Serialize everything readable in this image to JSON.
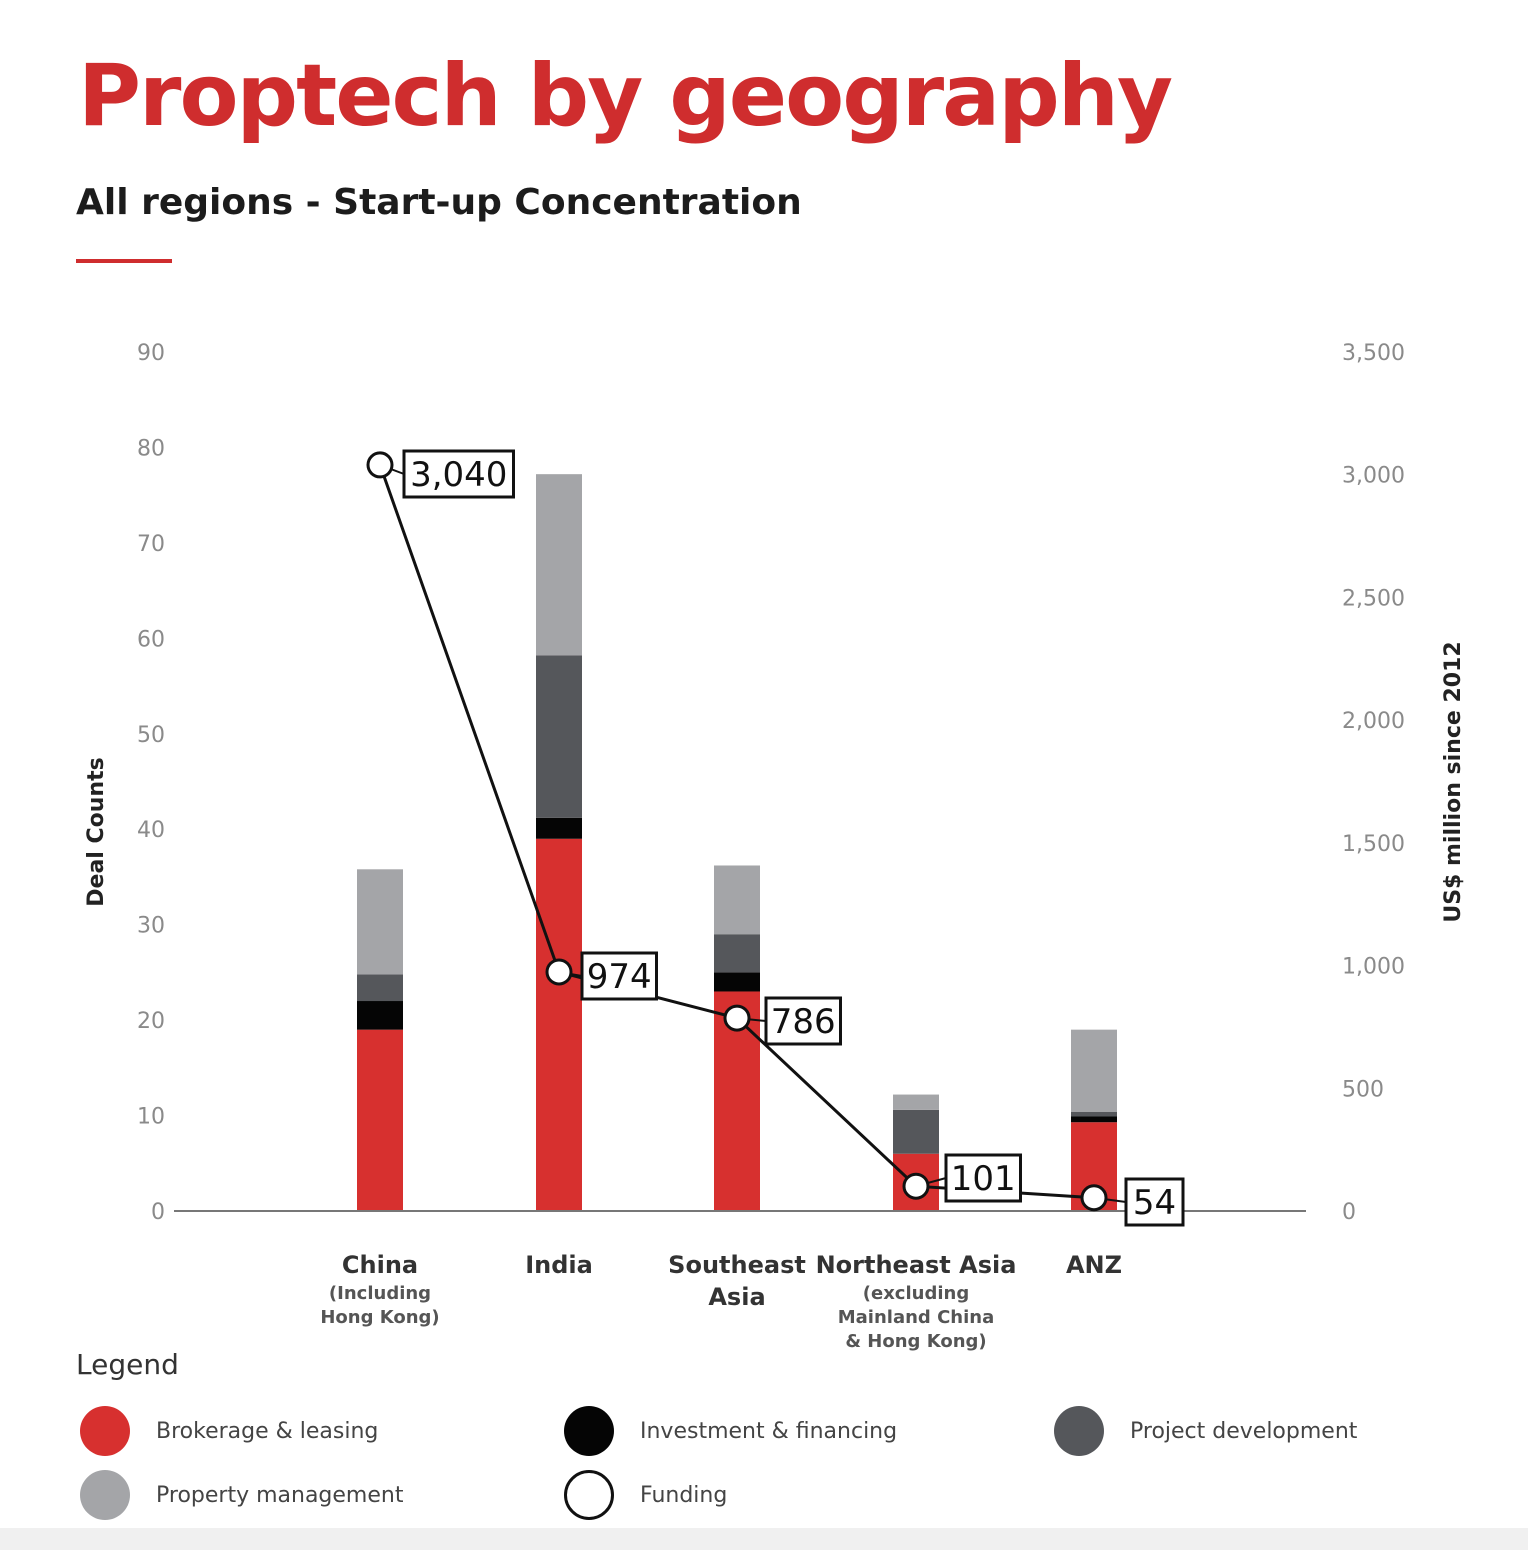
{
  "title": "Proptech by geography",
  "subtitle": "All regions - Start-up Concentration",
  "colors": {
    "accent": "#cf2d2e",
    "brokerage": "#d7302f",
    "investment": "#050505",
    "project": "#55575b",
    "property": "#a4a5a8",
    "funding_line": "#111111"
  },
  "chart_data": {
    "type": "bar",
    "stacked": true,
    "categories": [
      [
        "China",
        "(Including",
        "Hong Kong)"
      ],
      [
        "India"
      ],
      [
        "Southeast",
        "Asia"
      ],
      [
        "Northeast Asia",
        "(excluding",
        "Mainland China",
        "& Hong Kong)"
      ],
      [
        "ANZ"
      ]
    ],
    "series": [
      {
        "name": "Brokerage & leasing",
        "values": [
          19,
          39,
          23,
          6,
          9.3
        ]
      },
      {
        "name": "Investment & financing",
        "values": [
          3,
          2.2,
          2,
          0,
          0.6
        ]
      },
      {
        "name": "Project development",
        "values": [
          2.8,
          17,
          4,
          4.6,
          0.5
        ]
      },
      {
        "name": "Property management",
        "values": [
          11,
          19,
          7.2,
          1.6,
          8.6
        ]
      }
    ],
    "line_series": {
      "name": "Funding",
      "axis": "right",
      "values": [
        3040,
        974,
        786,
        101,
        54
      ],
      "labels": [
        "3,040",
        "974",
        "786",
        "101",
        "54"
      ]
    },
    "y_left": {
      "label": "Deal Counts",
      "range": [
        0,
        90
      ],
      "ticks": [
        "0",
        "10",
        "20",
        "30",
        "40",
        "50",
        "60",
        "70",
        "80",
        "90"
      ]
    },
    "y_right": {
      "label": "US$ million since 2012",
      "range": [
        0,
        3500
      ],
      "ticks": [
        "0",
        "500",
        "1,000",
        "1,500",
        "2,000",
        "2,500",
        "3,000",
        "3,500"
      ]
    },
    "grid": false,
    "legend_position": "bottom"
  },
  "legend": {
    "title": "Legend",
    "items": [
      {
        "label": "Brokerage & leasing",
        "color": "#d7302f",
        "style": "filled"
      },
      {
        "label": "Investment & financing",
        "color": "#050505",
        "style": "filled"
      },
      {
        "label": "Project development",
        "color": "#55575b",
        "style": "filled"
      },
      {
        "label": "Property management",
        "color": "#a4a5a8",
        "style": "filled"
      },
      {
        "label": "Funding",
        "color": "#111111",
        "style": "outline"
      }
    ]
  }
}
